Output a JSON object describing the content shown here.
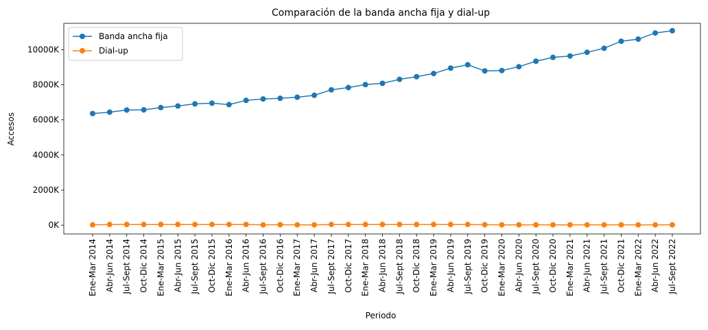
{
  "chart_data": {
    "type": "line",
    "title": "Comparación de la banda ancha fija y dial-up",
    "xlabel": "Periodo",
    "ylabel": "Accesos",
    "ylim": [
      -500,
      11500
    ],
    "yticks": [
      {
        "value": 0,
        "label": "0K"
      },
      {
        "value": 2000,
        "label": "2000K"
      },
      {
        "value": 4000,
        "label": "4000K"
      },
      {
        "value": 6000,
        "label": "6000K"
      },
      {
        "value": 8000,
        "label": "8000K"
      },
      {
        "value": 10000,
        "label": "10000K"
      }
    ],
    "grid": false,
    "legend_position": "top-left",
    "categories": [
      "Ene-Mar 2014",
      "Abr-Jun 2014",
      "Jul-Sept 2014",
      "Oct-Dic 2014",
      "Ene-Mar 2015",
      "Abr-Jun 2015",
      "Jul-Sept 2015",
      "Oct-Dic 2015",
      "Ene-Mar 2016",
      "Abr-Jun 2016",
      "Jul-Sept 2016",
      "Oct-Dic 2016",
      "Ene-Mar 2017",
      "Abr-Jun 2017",
      "Jul-Sept 2017",
      "Oct-Dic 2017",
      "Ene-Mar 2018",
      "Abr-Jun 2018",
      "Jul-Sept 2018",
      "Oct-Dic 2018",
      "Ene-Mar 2019",
      "Abr-Jun 2019",
      "Jul-Sept 2019",
      "Oct-Dic 2019",
      "Ene-Mar 2020",
      "Abr-Jun 2020",
      "Jul-Sept 2020",
      "Oct-Dic 2020",
      "Ene-Mar 2021",
      "Abr-Jun 2021",
      "Jul-Sept 2021",
      "Oct-Dic 2021",
      "Ene-Mar 2022",
      "Abr-Jun 2022",
      "Jul-Sept 2022"
    ],
    "series": [
      {
        "name": "Banda ancha fija",
        "color": "#1f77b4",
        "values": [
          6360,
          6440,
          6560,
          6570,
          6700,
          6790,
          6910,
          6950,
          6870,
          7110,
          7190,
          7230,
          7290,
          7400,
          7710,
          7840,
          8010,
          8080,
          8310,
          8460,
          8640,
          8950,
          9140,
          8790,
          8810,
          9030,
          9340,
          9560,
          9640,
          9850,
          10080,
          10480,
          10600,
          10950,
          11080
        ]
      },
      {
        "name": "Dial-up",
        "color": "#ff7f0e",
        "values": [
          20,
          40,
          40,
          40,
          40,
          40,
          40,
          40,
          40,
          40,
          20,
          30,
          20,
          20,
          40,
          40,
          40,
          40,
          40,
          40,
          40,
          40,
          40,
          30,
          20,
          20,
          20,
          20,
          20,
          20,
          20,
          20,
          20,
          20,
          20
        ]
      }
    ]
  }
}
